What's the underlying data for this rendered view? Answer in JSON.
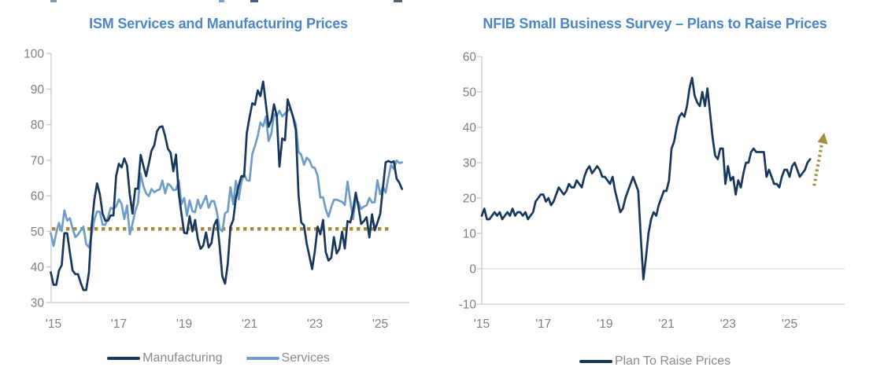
{
  "page": {
    "background": "#FFFFFF"
  },
  "colors": {
    "title_blue": "#4D86C5",
    "manufacturing_navy": "#17375E",
    "services_blue": "#6E9DC9",
    "gold": "#A58D3C",
    "axis_gray": "#C9C9C9",
    "grid_gray": "#D9D9D9",
    "label_gray": "#7F7F7F",
    "legend_gray": "#8A8A8A"
  },
  "chart_data": [
    {
      "type": "line",
      "title": "ISM Services and Manufacturing Prices",
      "x_unit": "month",
      "x_tick_labels": [
        "'15",
        "'17",
        "'19",
        "'21",
        "'23",
        "'25"
      ],
      "ylim": [
        30,
        100
      ],
      "yticks": [
        30,
        40,
        50,
        60,
        70,
        80,
        90,
        100
      ],
      "grid": "off",
      "legend_position": "bottom",
      "reference_line": {
        "value": 50.7,
        "style": "dotted",
        "color": "#A58D3C"
      },
      "series": [
        {
          "name": "Manufacturing",
          "color": "#17375E",
          "start": "2014-12",
          "values": [
            38.5,
            35,
            35,
            39,
            40.5,
            49.5,
            49.5,
            44,
            39,
            38,
            38,
            35.5,
            33.5,
            33.5,
            38.5,
            51.5,
            59,
            63.5,
            60.5,
            55,
            53,
            53,
            54.5,
            54.5,
            65.5,
            69,
            68,
            70.5,
            68.5,
            60.5,
            55,
            62,
            62,
            71.5,
            68.5,
            65.5,
            69,
            72.7,
            74.2,
            78.1,
            79.3,
            79.5,
            76.8,
            73.2,
            72.1,
            66.9,
            71.6,
            60.7,
            54.9,
            49.6,
            49.4,
            54.3,
            50,
            53.2,
            47.9,
            45.1,
            46,
            49.7,
            45.5,
            46.7,
            51.7,
            53.3,
            45.9,
            37.4,
            35.3,
            40.8,
            51.3,
            53.2,
            59.5,
            62.8,
            65.5,
            65.4,
            77.6,
            82.1,
            86,
            85.6,
            89.6,
            88,
            92.1,
            85.7,
            79.4,
            81.2,
            85.7,
            82.4,
            68.2,
            76.1,
            75.6,
            87.1,
            84.6,
            82.2,
            78.5,
            60,
            52.5,
            51.7,
            46.6,
            43,
            39.4,
            44.5,
            51.3,
            49.2,
            53.2,
            44.2,
            41.8,
            42.6,
            48.4,
            43.8,
            45.1,
            49.9,
            45.2,
            52.9,
            52.5,
            55.8,
            60.9,
            57,
            52.1,
            52.9,
            54,
            48.3,
            54.8,
            50.3,
            52.5,
            54.9,
            62.4,
            69.4,
            69.8,
            69.4,
            69.7,
            64.8,
            63.7,
            61.9
          ]
        },
        {
          "name": "Services",
          "color": "#6E9DC9",
          "start": "2014-12",
          "values": [
            49.5,
            45.9,
            49.7,
            52.4,
            50.1,
            55.9,
            53,
            53.7,
            50.8,
            48.4,
            49.1,
            50.3,
            51.3,
            46.4,
            45.5,
            49.1,
            53.4,
            55.6,
            55.5,
            51.9,
            51.8,
            54,
            56.6,
            56.3,
            57,
            59,
            57.7,
            53.5,
            57.3,
            49.2,
            52.1,
            55.7,
            57.9,
            66.3,
            62.7,
            60.7,
            59.9,
            61.9,
            61,
            61.5,
            61.8,
            64.3,
            60.7,
            63.4,
            62.8,
            61.6,
            61.7,
            64.3,
            57.6,
            59.4,
            54.4,
            58.7,
            55.7,
            55.4,
            58.9,
            56.5,
            58.2,
            60,
            56.6,
            58.5,
            58.5,
            55.5,
            50.8,
            50,
            55.1,
            55.6,
            62.4,
            57.6,
            64.2,
            59,
            63.9,
            66.1,
            64.4,
            64.2,
            71.8,
            74,
            76.8,
            80.6,
            79.5,
            82.3,
            75.4,
            77.5,
            82.9,
            82.3,
            83.9,
            82.3,
            83.1,
            83.8,
            84.6,
            82.1,
            80.1,
            72.3,
            71.5,
            68.7,
            70.7,
            70,
            68.1,
            67.8,
            65.6,
            59.5,
            59.6,
            56.2,
            54.1,
            56.8,
            58.9,
            58.9,
            58.6,
            58.3,
            57.4,
            64,
            58.6,
            53.4,
            59.2,
            58.1,
            56.3,
            57,
            57.3,
            59.4,
            58.1,
            58.2,
            64.4,
            60.4,
            62.6,
            60.9,
            65.1,
            68.7,
            67.5,
            69.9,
            69.2,
            69.4
          ]
        }
      ]
    },
    {
      "type": "line",
      "title": "NFIB Small Business Survey – Plans to Raise Prices",
      "x_unit": "month",
      "x_tick_labels": [
        "'15",
        "'17",
        "'19",
        "'21",
        "'23",
        "'25"
      ],
      "ylim": [
        -10,
        60
      ],
      "yticks": [
        -10,
        0,
        10,
        20,
        30,
        40,
        50,
        60
      ],
      "grid": "zero-line-only",
      "legend_position": "bottom",
      "annotation": {
        "type": "arrow-up",
        "style": "dotted",
        "color": "#A58D3C",
        "from_value": 23.5,
        "to_value": 38.5
      },
      "series": [
        {
          "name": "Plan To Raise Prices",
          "color": "#17375E",
          "start": "2015-01",
          "values": [
            15,
            17,
            14,
            14,
            15,
            16,
            15,
            16,
            14,
            15,
            16,
            15,
            17,
            15,
            16,
            16,
            15,
            16,
            14,
            15,
            16,
            19,
            20,
            21,
            21,
            19,
            20,
            18,
            19,
            21,
            23,
            22,
            21,
            22,
            24,
            23,
            23,
            25,
            24,
            23,
            26,
            28,
            29,
            27,
            28,
            29,
            28,
            26,
            26,
            25,
            24,
            26,
            22,
            19,
            16,
            17,
            20,
            22,
            24,
            26,
            24,
            22,
            9,
            -3,
            3,
            10,
            14,
            16,
            15,
            18,
            20,
            22,
            22,
            25,
            34,
            36,
            40,
            43,
            44,
            43,
            46,
            51,
            54,
            49,
            47,
            46,
            50,
            46,
            51,
            44,
            37,
            32,
            31,
            34,
            34,
            24,
            29,
            25,
            26,
            21,
            25,
            23,
            27,
            30,
            30,
            33,
            34,
            33,
            33,
            33,
            33,
            26,
            28,
            26,
            24,
            24,
            23,
            26,
            28,
            28,
            26,
            29,
            30,
            28,
            26,
            27,
            28,
            30,
            31
          ]
        }
      ]
    }
  ]
}
